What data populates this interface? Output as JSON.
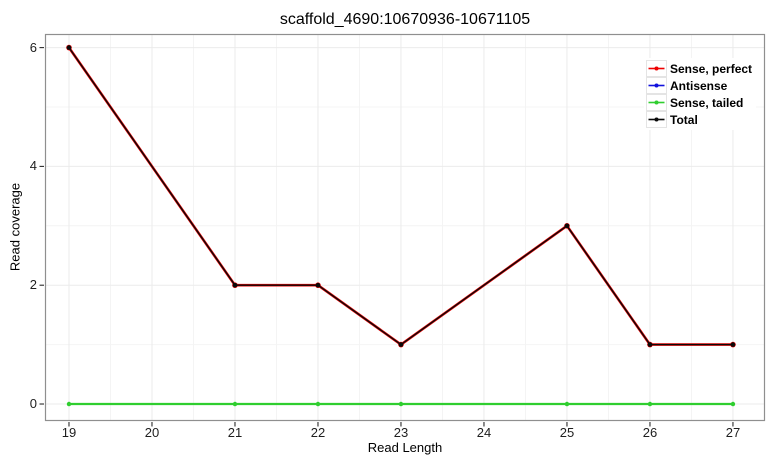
{
  "ui": {
    "title": "scaffold_4690:10670936-10671105",
    "xlabel": "Read Length",
    "ylabel": "Read coverage"
  },
  "legend": {
    "position": "top-right-inside",
    "items": [
      {
        "label": "Sense, perfect",
        "color": "#EE0000"
      },
      {
        "label": "Antisense",
        "color": "#1111DD"
      },
      {
        "label": "Sense, tailed",
        "color": "#2FCE2F"
      },
      {
        "label": "Total",
        "color": "#0A0A0A"
      }
    ]
  },
  "chart_data": {
    "type": "line",
    "title": "scaffold_4690:10670936-10671105",
    "xlabel": "Read Length",
    "ylabel": "Read coverage",
    "x": [
      19,
      21,
      22,
      23,
      25,
      26,
      27
    ],
    "series": [
      {
        "name": "Sense, perfect",
        "color": "#EE0000",
        "values": [
          6,
          2,
          2,
          1,
          3,
          1,
          1
        ]
      },
      {
        "name": "Antisense",
        "color": "#1111DD",
        "values": [
          0,
          0,
          0,
          0,
          0,
          0,
          0
        ]
      },
      {
        "name": "Sense, tailed",
        "color": "#2FCE2F",
        "values": [
          0,
          0,
          0,
          0,
          0,
          0,
          0
        ]
      },
      {
        "name": "Total",
        "color": "#0A0A0A",
        "values": [
          6,
          2,
          2,
          1,
          3,
          1,
          1
        ]
      }
    ],
    "x_ticks": [
      19,
      20,
      21,
      22,
      23,
      24,
      25,
      26,
      27
    ],
    "y_ticks": [
      0,
      2,
      4,
      6
    ],
    "xlim": [
      18.711,
      27.386
    ],
    "ylim": [
      -0.286,
      6.229
    ],
    "grid": "major+minor",
    "legend_position": "top-right-inside",
    "markers": true
  }
}
